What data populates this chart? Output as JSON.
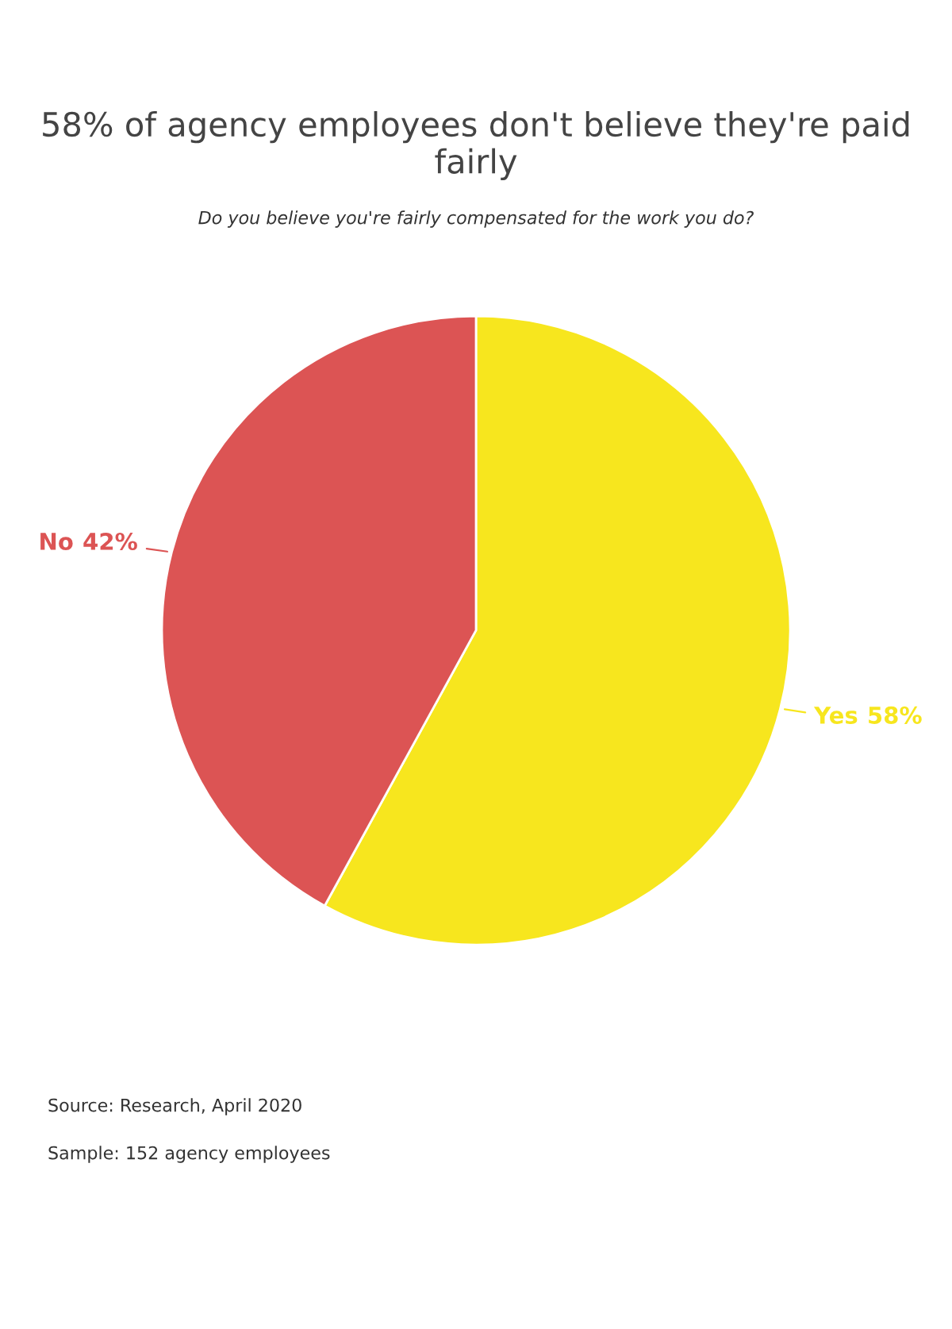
{
  "chart_data": {
    "type": "pie",
    "title": "58% of agency employees don't believe they're paid fairly",
    "subtitle": "Do you believe you're fairly compensated for the work you do?",
    "categories": [
      "Yes",
      "No"
    ],
    "values": [
      58,
      42
    ],
    "colors": [
      "#f7e61e",
      "#dc5454"
    ],
    "value_labels": [
      "58%",
      "42%"
    ],
    "annotations": [
      "Source: Research, April 2020",
      "Sample: 152 agency employees"
    ]
  }
}
